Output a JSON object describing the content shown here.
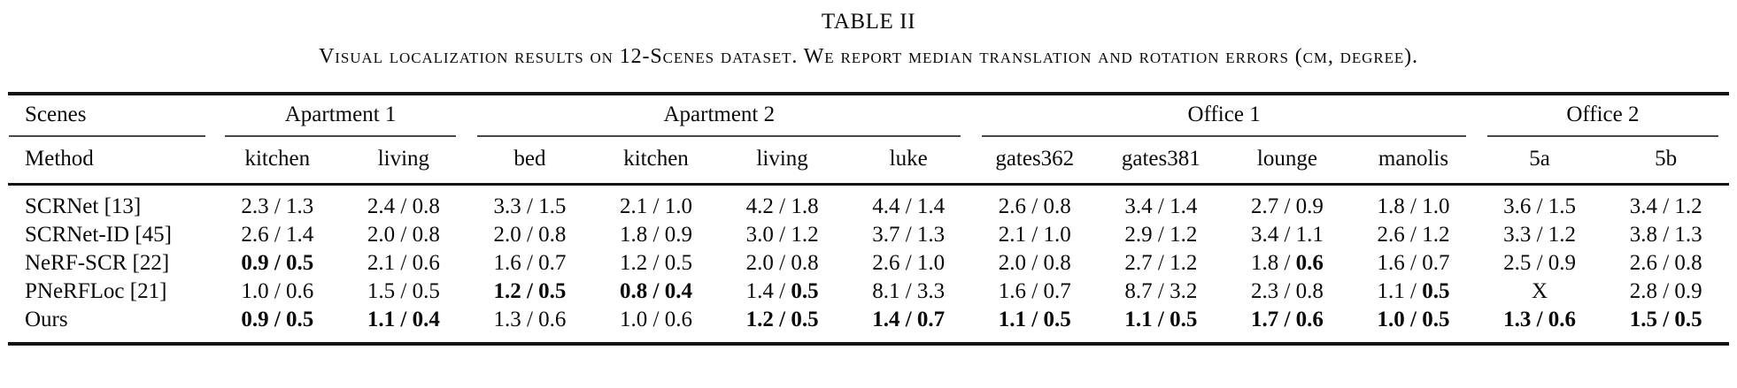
{
  "title": "TABLE II",
  "caption": "Visual localization results on 12-Scenes dataset. We report median translation and rotation errors (cm, degree).",
  "table": {
    "corner_top": "Scenes",
    "corner_bottom": "Method",
    "separator": " / ",
    "groups": [
      {
        "label": "Apartment 1",
        "cols": 2
      },
      {
        "label": "Apartment 2",
        "cols": 4
      },
      {
        "label": "Office 1",
        "cols": 4
      },
      {
        "label": "Office 2",
        "cols": 2
      }
    ],
    "scene_columns": [
      "kitchen",
      "living",
      "bed",
      "kitchen",
      "living",
      "luke",
      "gates362",
      "gates381",
      "lounge",
      "manolis",
      "5a",
      "5b"
    ],
    "rows": [
      {
        "method": "SCRNet [13]",
        "cells": [
          {
            "t": "2.3",
            "r": "1.3"
          },
          {
            "t": "2.4",
            "r": "0.8"
          },
          {
            "t": "3.3",
            "r": "1.5"
          },
          {
            "t": "2.1",
            "r": "1.0"
          },
          {
            "t": "4.2",
            "r": "1.8"
          },
          {
            "t": "4.4",
            "r": "1.4"
          },
          {
            "t": "2.6",
            "r": "0.8"
          },
          {
            "t": "3.4",
            "r": "1.4"
          },
          {
            "t": "2.7",
            "r": "0.9"
          },
          {
            "t": "1.8",
            "r": "1.0"
          },
          {
            "t": "3.6",
            "r": "1.5"
          },
          {
            "t": "3.4",
            "r": "1.2"
          }
        ]
      },
      {
        "method": "SCRNet-ID [45]",
        "cells": [
          {
            "t": "2.6",
            "r": "1.4"
          },
          {
            "t": "2.0",
            "r": "0.8"
          },
          {
            "t": "2.0",
            "r": "0.8"
          },
          {
            "t": "1.8",
            "r": "0.9"
          },
          {
            "t": "3.0",
            "r": "1.2"
          },
          {
            "t": "3.7",
            "r": "1.3"
          },
          {
            "t": "2.1",
            "r": "1.0"
          },
          {
            "t": "2.9",
            "r": "1.2"
          },
          {
            "t": "3.4",
            "r": "1.1"
          },
          {
            "t": "2.6",
            "r": "1.2"
          },
          {
            "t": "3.3",
            "r": "1.2"
          },
          {
            "t": "3.8",
            "r": "1.3"
          }
        ]
      },
      {
        "method": "NeRF-SCR [22]",
        "cells": [
          {
            "t": "0.9",
            "r": "0.5",
            "bt": true,
            "br": true
          },
          {
            "t": "2.1",
            "r": "0.6"
          },
          {
            "t": "1.6",
            "r": "0.7"
          },
          {
            "t": "1.2",
            "r": "0.5"
          },
          {
            "t": "2.0",
            "r": "0.8"
          },
          {
            "t": "2.6",
            "r": "1.0"
          },
          {
            "t": "2.0",
            "r": "0.8"
          },
          {
            "t": "2.7",
            "r": "1.2"
          },
          {
            "t": "1.8",
            "r": "0.6",
            "br": true
          },
          {
            "t": "1.6",
            "r": "0.7"
          },
          {
            "t": "2.5",
            "r": "0.9"
          },
          {
            "t": "2.6",
            "r": "0.8"
          }
        ]
      },
      {
        "method": "PNeRFLoc [21]",
        "cells": [
          {
            "t": "1.0",
            "r": "0.6"
          },
          {
            "t": "1.5",
            "r": "0.5"
          },
          {
            "t": "1.2",
            "r": "0.5",
            "bt": true,
            "br": true
          },
          {
            "t": "0.8",
            "r": "0.4",
            "bt": true,
            "br": true
          },
          {
            "t": "1.4",
            "r": "0.5",
            "br": true
          },
          {
            "t": "8.1",
            "r": "3.3"
          },
          {
            "t": "1.6",
            "r": "0.7"
          },
          {
            "t": "8.7",
            "r": "3.2"
          },
          {
            "t": "2.3",
            "r": "0.8"
          },
          {
            "t": "1.1",
            "r": "0.5",
            "br": true
          },
          {
            "t": "X",
            "r": null
          },
          {
            "t": "2.8",
            "r": "0.9"
          }
        ]
      },
      {
        "method": "Ours",
        "cells": [
          {
            "t": "0.9",
            "r": "0.5",
            "bt": true,
            "br": true
          },
          {
            "t": "1.1",
            "r": "0.4",
            "bt": true,
            "br": true
          },
          {
            "t": "1.3",
            "r": "0.6"
          },
          {
            "t": "1.0",
            "r": "0.6"
          },
          {
            "t": "1.2",
            "r": "0.5",
            "bt": true,
            "br": true
          },
          {
            "t": "1.4",
            "r": "0.7",
            "bt": true,
            "br": true
          },
          {
            "t": "1.1",
            "r": "0.5",
            "bt": true,
            "br": true
          },
          {
            "t": "1.1",
            "r": "0.5",
            "bt": true,
            "br": true
          },
          {
            "t": "1.7",
            "r": "0.6",
            "bt": true,
            "br": true
          },
          {
            "t": "1.0",
            "r": "0.5",
            "bt": true,
            "br": true
          },
          {
            "t": "1.3",
            "r": "0.6",
            "bt": true,
            "br": true
          },
          {
            "t": "1.5",
            "r": "0.5",
            "bt": true,
            "br": true
          }
        ]
      }
    ]
  }
}
